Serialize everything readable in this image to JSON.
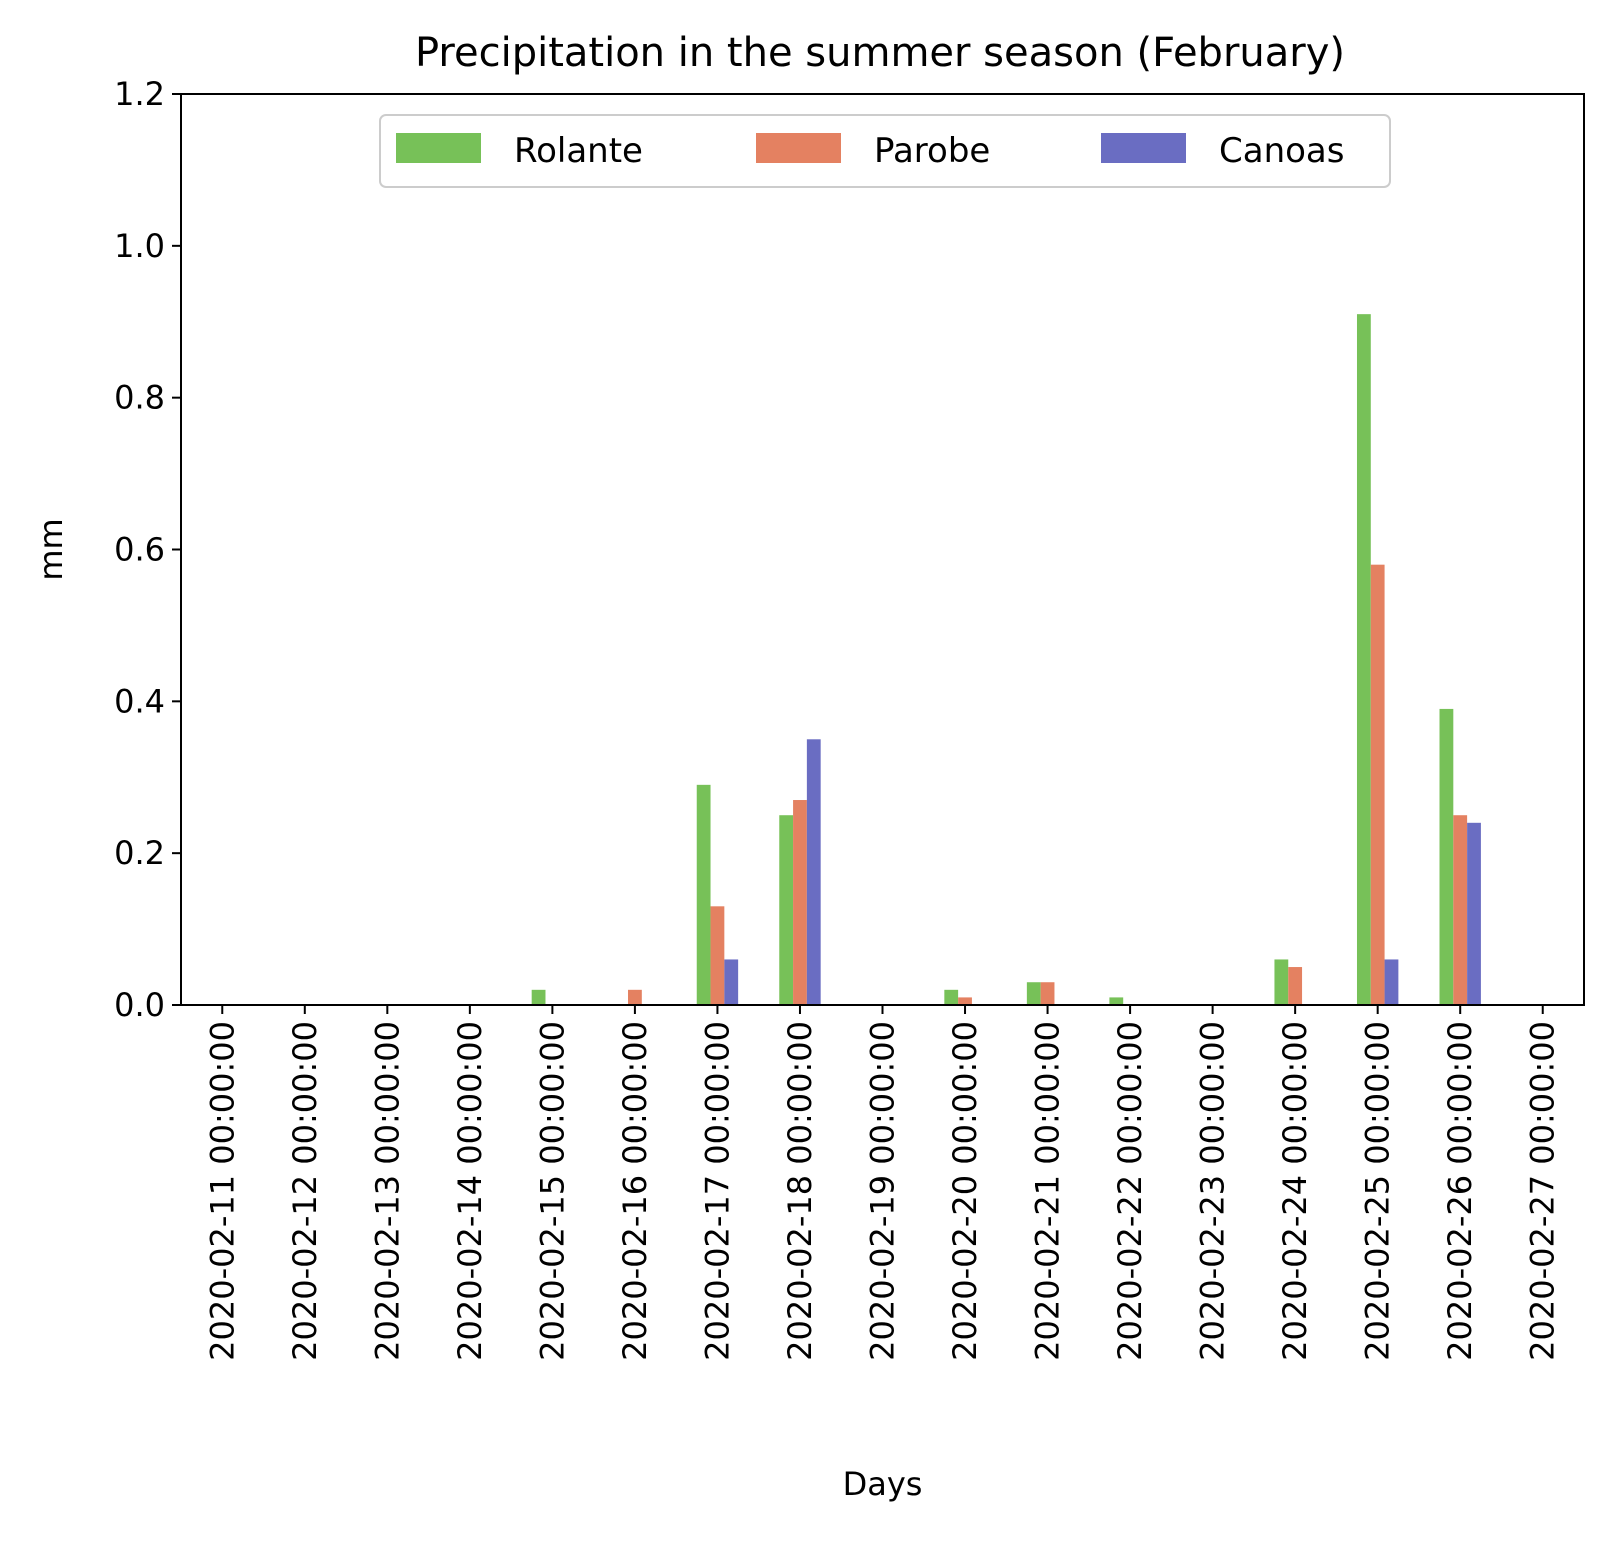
{
  "chart_data": {
    "type": "bar",
    "title": "Precipitation in the summer season (February)",
    "xlabel": "Days",
    "ylabel": "mm",
    "ylim": [
      0,
      1.2
    ],
    "yticks": [
      "0.0",
      "0.2",
      "0.4",
      "0.6",
      "0.8",
      "1.0",
      "1.2"
    ],
    "grid": false,
    "legend_position": "top-center",
    "categories": [
      "2020-02-11 00:00:00",
      "2020-02-12 00:00:00",
      "2020-02-13 00:00:00",
      "2020-02-14 00:00:00",
      "2020-02-15 00:00:00",
      "2020-02-16 00:00:00",
      "2020-02-17 00:00:00",
      "2020-02-18 00:00:00",
      "2020-02-19 00:00:00",
      "2020-02-20 00:00:00",
      "2020-02-21 00:00:00",
      "2020-02-22 00:00:00",
      "2020-02-23 00:00:00",
      "2020-02-24 00:00:00",
      "2020-02-25 00:00:00",
      "2020-02-26 00:00:00",
      "2020-02-27 00:00:00"
    ],
    "series": [
      {
        "name": "Rolante",
        "color": "#77c158",
        "values": [
          0,
          0,
          0,
          0,
          0.02,
          0,
          0.29,
          0.25,
          0,
          0.02,
          0.03,
          0.01,
          0,
          0.06,
          0.91,
          0.39,
          0
        ]
      },
      {
        "name": "Parobe",
        "color": "#e48161",
        "values": [
          0,
          0,
          0,
          0,
          0,
          0.02,
          0.13,
          0.27,
          0,
          0.01,
          0.03,
          0,
          0,
          0.05,
          0.58,
          0.25,
          0
        ]
      },
      {
        "name": "Canoas",
        "color": "#6a6dc2",
        "values": [
          0,
          0,
          0,
          0,
          0,
          0,
          0.06,
          0.35,
          0,
          0,
          0,
          0,
          0,
          0,
          0.06,
          0.24,
          0
        ]
      }
    ]
  }
}
